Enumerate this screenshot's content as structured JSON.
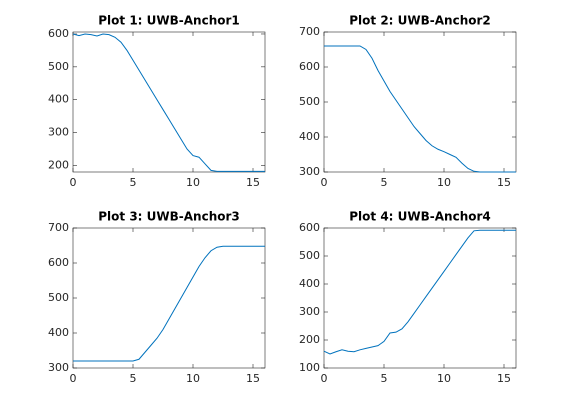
{
  "chart_data": [
    {
      "type": "line",
      "title": "Plot 1: UWB-Anchor1",
      "x": [
        0,
        0.5,
        1,
        1.5,
        2,
        2.5,
        3,
        3.5,
        4,
        4.5,
        5,
        5.5,
        6,
        6.5,
        7,
        7.5,
        8,
        8.5,
        9,
        9.5,
        10,
        10.5,
        11,
        11.5,
        12,
        12.5,
        13,
        13.5,
        14,
        14.5,
        15,
        15.5,
        16
      ],
      "series": [
        {
          "color": "#0072bd",
          "values": [
            600,
            595,
            600,
            598,
            594,
            600,
            598,
            590,
            575,
            550,
            520,
            490,
            460,
            430,
            400,
            370,
            340,
            310,
            280,
            250,
            230,
            225,
            205,
            185,
            182,
            182,
            182,
            182,
            182,
            182,
            182,
            182,
            182
          ]
        }
      ],
      "xlim": [
        0,
        16
      ],
      "xticks": [
        0,
        5,
        10,
        15
      ],
      "ylim": [
        180,
        606
      ],
      "yticks": [
        200,
        300,
        400,
        500,
        600
      ]
    },
    {
      "type": "line",
      "title": "Plot 2: UWB-Anchor2",
      "x": [
        0,
        0.5,
        1,
        1.5,
        2,
        2.5,
        3,
        3.5,
        4,
        4.5,
        5,
        5.5,
        6,
        6.5,
        7,
        7.5,
        8,
        8.5,
        9,
        9.5,
        10,
        10.5,
        11,
        11.5,
        12,
        12.5,
        13,
        13.5,
        14,
        14.5,
        15,
        15.5,
        16
      ],
      "series": [
        {
          "color": "#0072bd",
          "values": [
            660,
            660,
            660,
            660,
            660,
            660,
            660,
            650,
            625,
            590,
            560,
            530,
            505,
            480,
            455,
            430,
            410,
            390,
            375,
            365,
            358,
            350,
            342,
            325,
            310,
            302,
            300,
            300,
            300,
            300,
            300,
            300,
            300
          ]
        }
      ],
      "xlim": [
        0,
        16
      ],
      "xticks": [
        0,
        5,
        10,
        15
      ],
      "ylim": [
        300,
        700
      ],
      "yticks": [
        300,
        400,
        500,
        600,
        700
      ]
    },
    {
      "type": "line",
      "title": "Plot 3: UWB-Anchor3",
      "x": [
        0,
        0.5,
        1,
        1.5,
        2,
        2.5,
        3,
        3.5,
        4,
        4.5,
        5,
        5.5,
        6,
        6.5,
        7,
        7.5,
        8,
        8.5,
        9,
        9.5,
        10,
        10.5,
        11,
        11.5,
        12,
        12.5,
        13,
        13.5,
        14,
        14.5,
        15,
        15.5,
        16
      ],
      "series": [
        {
          "color": "#0072bd",
          "values": [
            320,
            320,
            320,
            320,
            320,
            320,
            320,
            320,
            320,
            320,
            320,
            325,
            345,
            365,
            385,
            410,
            440,
            470,
            500,
            530,
            560,
            590,
            615,
            635,
            645,
            648,
            648,
            648,
            648,
            648,
            648,
            648,
            648
          ]
        }
      ],
      "xlim": [
        0,
        16
      ],
      "xticks": [
        0,
        5,
        10,
        15
      ],
      "ylim": [
        300,
        700
      ],
      "yticks": [
        300,
        400,
        500,
        600,
        700
      ]
    },
    {
      "type": "line",
      "title": "Plot 4: UWB-Anchor4",
      "x": [
        0,
        0.5,
        1,
        1.5,
        2,
        2.5,
        3,
        3.5,
        4,
        4.5,
        5,
        5.5,
        6,
        6.5,
        7,
        7.5,
        8,
        8.5,
        9,
        9.5,
        10,
        10.5,
        11,
        11.5,
        12,
        12.5,
        13,
        13.5,
        14,
        14.5,
        15,
        15.5,
        16
      ],
      "series": [
        {
          "color": "#0072bd",
          "values": [
            160,
            150,
            158,
            165,
            160,
            158,
            165,
            170,
            175,
            180,
            195,
            225,
            228,
            240,
            265,
            295,
            325,
            355,
            385,
            415,
            445,
            475,
            505,
            535,
            565,
            590,
            592,
            592,
            592,
            592,
            592,
            592,
            592
          ]
        }
      ],
      "xlim": [
        0,
        16
      ],
      "xticks": [
        0,
        5,
        10,
        15
      ],
      "ylim": [
        100,
        600
      ],
      "yticks": [
        100,
        200,
        300,
        400,
        500,
        600
      ]
    }
  ]
}
